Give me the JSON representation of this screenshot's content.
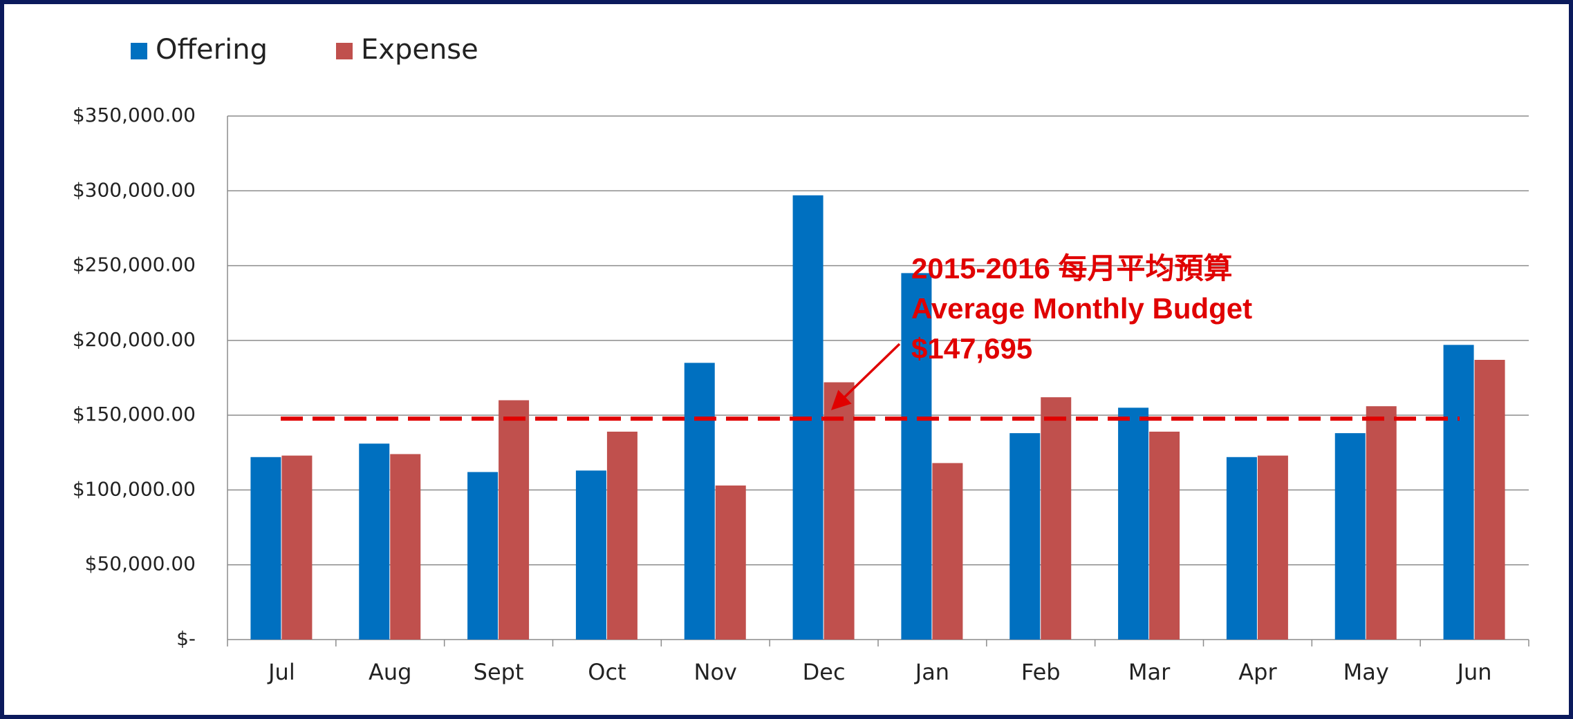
{
  "chart_data": {
    "type": "bar",
    "categories": [
      "Jul",
      "Aug",
      "Sept",
      "Oct",
      "Nov",
      "Dec",
      "Jan",
      "Feb",
      "Mar",
      "Apr",
      "May",
      "Jun"
    ],
    "series": [
      {
        "name": "Offering",
        "color": "#0070c0",
        "values": [
          122000,
          131000,
          112000,
          113000,
          185000,
          297000,
          245000,
          138000,
          155000,
          122000,
          138000,
          197000
        ]
      },
      {
        "name": "Expense",
        "color": "#c0504d",
        "values": [
          123000,
          124000,
          160000,
          139000,
          103000,
          172000,
          118000,
          162000,
          139000,
          123000,
          156000,
          187000
        ]
      }
    ],
    "ylim": [
      0,
      350000
    ],
    "yticks": [
      {
        "value": 0,
        "label": "$-"
      },
      {
        "value": 50000,
        "label": "$50,000.00"
      },
      {
        "value": 100000,
        "label": "$100,000.00"
      },
      {
        "value": 150000,
        "label": "$150,000.00"
      },
      {
        "value": 200000,
        "label": "$200,000.00"
      },
      {
        "value": 250000,
        "label": "$250,000.00"
      },
      {
        "value": 300000,
        "label": "$300,000.00"
      },
      {
        "value": 350000,
        "label": "$350,000.00"
      }
    ],
    "grid": true,
    "legend": "top-left",
    "reference_line": {
      "value": 147695,
      "label": "$147,695",
      "color": "#e00000"
    },
    "annotation": [
      "2015-2016 每月平均預算",
      "Average Monthly Budget"
    ]
  }
}
